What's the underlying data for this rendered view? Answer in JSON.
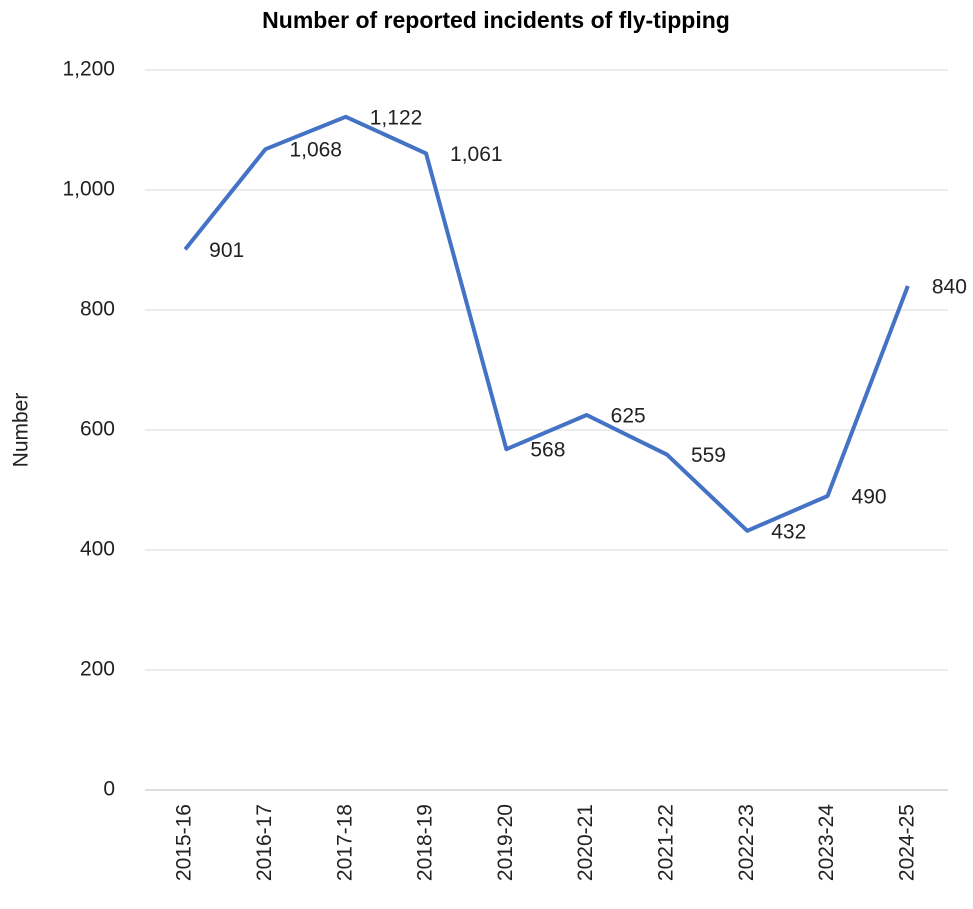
{
  "chart_data": {
    "type": "line",
    "title": "Number of reported incidents of fly-tipping",
    "y_label": "Number",
    "categories": [
      "2015-16",
      "2016-17",
      "2017-18",
      "2018-19",
      "2019-20",
      "2020-21",
      "2021-22",
      "2022-23",
      "2023-24",
      "2024-25"
    ],
    "series": [
      {
        "name": "Number",
        "color": "#4472c4",
        "values": [
          901,
          1068,
          1122,
          1061,
          568,
          625,
          559,
          432,
          490,
          840
        ],
        "value_labels": [
          "901",
          "1,068",
          "1,122",
          "1,061",
          "568",
          "625",
          "559",
          "432",
          "490",
          "840"
        ]
      }
    ],
    "ylim": [
      0,
      1200
    ],
    "yticks": [
      0,
      200,
      400,
      600,
      800,
      {
        "value": 1000,
        "label": "1,000"
      },
      {
        "value": 1200,
        "label": "1,200"
      }
    ],
    "grid": true
  }
}
